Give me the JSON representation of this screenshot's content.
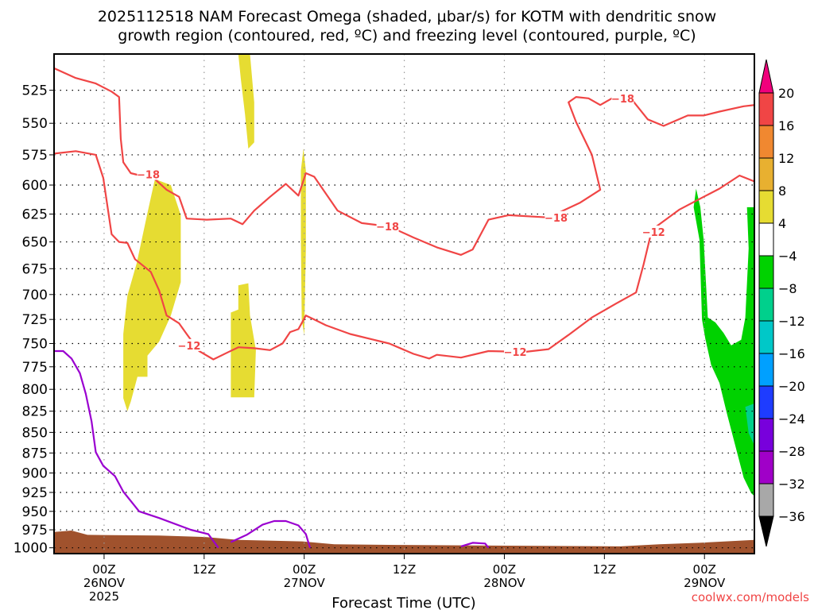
{
  "chart_data": {
    "type": "heatmap",
    "title_line1": "2025112518 NAM Forecast Omega (shaded, μbar/s) for KOTM with dendritic snow",
    "title_line2": "growth region (contoured, red, ºC) and freezing level (contoured, purple, ºC)",
    "xlabel": "Forecast Time (UTC)",
    "credit": "coolwx.com/models",
    "x_units": "forecast hours from 2025-11-25 18Z",
    "xlim": [
      0,
      84
    ],
    "ylim": [
      1008,
      500
    ],
    "y_scale": "log-pressure",
    "y_ticks": [
      525,
      550,
      575,
      600,
      625,
      650,
      675,
      700,
      725,
      750,
      775,
      800,
      825,
      850,
      875,
      900,
      925,
      950,
      975,
      1000
    ],
    "x_ticks": [
      {
        "hour": 6,
        "lines": [
          "00Z",
          "26NOV",
          "2025"
        ]
      },
      {
        "hour": 18,
        "lines": [
          "12Z"
        ]
      },
      {
        "hour": 30,
        "lines": [
          "00Z",
          "27NOV"
        ]
      },
      {
        "hour": 42,
        "lines": [
          "12Z"
        ]
      },
      {
        "hour": 54,
        "lines": [
          "00Z",
          "28NOV"
        ]
      },
      {
        "hour": 66,
        "lines": [
          "12Z"
        ]
      },
      {
        "hour": 78,
        "lines": [
          "00Z",
          "29NOV"
        ]
      }
    ],
    "grid": true,
    "colorbar": {
      "labels": [
        "20",
        "16",
        "12",
        "8",
        "4",
        "-4",
        "-8",
        "-12",
        "-16",
        "-20",
        "-24",
        "-28",
        "-32",
        "-36"
      ],
      "colors": [
        "#f04545",
        "#f08830",
        "#e8b030",
        "#e6dc32",
        "#ffffff",
        "#00d200",
        "#00d08c",
        "#00c8c8",
        "#00a0ff",
        "#1e3cff",
        "#7800dc",
        "#a000c8",
        "#a8a8a8"
      ],
      "over_color": "#f0007c",
      "under_color": "#000000"
    },
    "contours": [
      {
        "name": "dgz-minus18",
        "color": "#f04545",
        "level": "-18",
        "points": [
          [
            0,
            509
          ],
          [
            2.6,
            516
          ],
          [
            5,
            520
          ],
          [
            6.9,
            526
          ],
          [
            7.8,
            530
          ],
          [
            8,
            562
          ],
          [
            8.3,
            581
          ],
          [
            9.2,
            590
          ],
          [
            12.1,
            595
          ],
          [
            13.5,
            604
          ],
          [
            15,
            610
          ],
          [
            15.9,
            629
          ],
          [
            18.3,
            630
          ],
          [
            21.2,
            629
          ],
          [
            22.6,
            634
          ],
          [
            24,
            622
          ],
          [
            25.9,
            610
          ],
          [
            27.8,
            599
          ],
          [
            29.3,
            609
          ],
          [
            30.2,
            590
          ],
          [
            31.2,
            593
          ],
          [
            34,
            622
          ],
          [
            36.9,
            633
          ],
          [
            40.2,
            636
          ],
          [
            43.1,
            646
          ],
          [
            45.9,
            655
          ],
          [
            48.8,
            662
          ],
          [
            50.2,
            657
          ],
          [
            52.1,
            630
          ],
          [
            54.5,
            626
          ],
          [
            59.3,
            628
          ],
          [
            63.1,
            615
          ],
          [
            65.5,
            604
          ],
          [
            64.5,
            575
          ],
          [
            62.6,
            549
          ],
          [
            61.7,
            534
          ],
          [
            62.6,
            530
          ],
          [
            64.1,
            531
          ],
          [
            65.5,
            536
          ],
          [
            66.9,
            531
          ],
          [
            69.3,
            532
          ],
          [
            71.2,
            547
          ],
          [
            73.1,
            552
          ],
          [
            76,
            544
          ],
          [
            77.9,
            544
          ],
          [
            79.8,
            541
          ],
          [
            82.7,
            537
          ],
          [
            84,
            536
          ]
        ]
      },
      {
        "name": "dgz-minus12",
        "color": "#f04545",
        "level": "-12",
        "points": [
          [
            0,
            574
          ],
          [
            2.6,
            572
          ],
          [
            5,
            575
          ],
          [
            5.9,
            594
          ],
          [
            6.9,
            643
          ],
          [
            7.8,
            650
          ],
          [
            8.8,
            651
          ],
          [
            9.7,
            666
          ],
          [
            11.6,
            678
          ],
          [
            12.6,
            696
          ],
          [
            13.5,
            721
          ],
          [
            15,
            729
          ],
          [
            15.9,
            740
          ],
          [
            17.4,
            758
          ],
          [
            19.1,
            767
          ],
          [
            20.7,
            760
          ],
          [
            22.1,
            754
          ],
          [
            24,
            755
          ],
          [
            25.9,
            757
          ],
          [
            27.4,
            750
          ],
          [
            28.3,
            738
          ],
          [
            29.3,
            735
          ],
          [
            30.2,
            721
          ],
          [
            31.2,
            725
          ],
          [
            32.6,
            731
          ],
          [
            35.5,
            740
          ],
          [
            38.3,
            746
          ],
          [
            40.2,
            750
          ],
          [
            43.1,
            761
          ],
          [
            45,
            766
          ],
          [
            45.9,
            762
          ],
          [
            48.8,
            765
          ],
          [
            52.1,
            758
          ],
          [
            56.4,
            759
          ],
          [
            59.3,
            756
          ],
          [
            61.7,
            741
          ],
          [
            64.5,
            723
          ],
          [
            67.4,
            709
          ],
          [
            69.8,
            698
          ],
          [
            70.7,
            671
          ],
          [
            71.7,
            639
          ],
          [
            75,
            621
          ],
          [
            77.9,
            610
          ],
          [
            79.8,
            603
          ],
          [
            82.2,
            592
          ],
          [
            84,
            597
          ]
        ]
      },
      {
        "name": "freezing-level-1",
        "color": "#9a00d0",
        "level": "0",
        "points": [
          [
            0,
            758
          ],
          [
            1.1,
            758
          ],
          [
            2.1,
            766
          ],
          [
            3.1,
            782
          ],
          [
            3.8,
            805
          ],
          [
            4.5,
            837
          ],
          [
            5,
            874
          ],
          [
            5.9,
            891
          ],
          [
            7.3,
            904
          ],
          [
            8.3,
            924
          ],
          [
            10.2,
            950
          ],
          [
            12.6,
            959
          ],
          [
            16.4,
            975
          ],
          [
            18.5,
            981
          ],
          [
            19.7,
            1000
          ]
        ]
      },
      {
        "name": "freezing-level-2",
        "color": "#9a00d0",
        "level": "0",
        "points": [
          [
            21.2,
            992
          ],
          [
            23.1,
            982
          ],
          [
            25,
            968
          ],
          [
            26.4,
            963
          ],
          [
            27.8,
            963
          ],
          [
            29.3,
            969
          ],
          [
            30.2,
            981
          ],
          [
            30.7,
            1000
          ]
        ]
      },
      {
        "name": "freezing-level-3",
        "color": "#9a00d0",
        "level": "0",
        "points": [
          [
            48.8,
            998
          ],
          [
            50.2,
            993
          ],
          [
            51.7,
            994
          ],
          [
            52.1,
            1000
          ]
        ]
      }
    ],
    "contour_labels": [
      {
        "text": "-18",
        "hour": 11.3,
        "hPa": 591
      },
      {
        "text": "-18",
        "hour": 40,
        "hPa": 636
      },
      {
        "text": "-18",
        "hour": 60.2,
        "hPa": 628
      },
      {
        "text": "-18",
        "hour": 68.2,
        "hPa": 531
      },
      {
        "text": "-12",
        "hour": 16.2,
        "hPa": 752
      },
      {
        "text": "-12",
        "hour": 55.3,
        "hPa": 759
      },
      {
        "text": "-12",
        "hour": 71.9,
        "hPa": 641
      }
    ],
    "omega_regions": [
      {
        "name": "omega-4to8-a",
        "color": "#e6dc32",
        "points": [
          [
            8.8,
            825
          ],
          [
            8.3,
            810
          ],
          [
            8.3,
            740
          ],
          [
            8.8,
            701
          ],
          [
            9.9,
            670
          ],
          [
            11.2,
            624
          ],
          [
            12.1,
            595
          ],
          [
            14,
            600
          ],
          [
            15.2,
            626
          ],
          [
            15.2,
            688
          ],
          [
            14,
            721
          ],
          [
            12.6,
            748
          ],
          [
            11.2,
            763
          ],
          [
            11.2,
            786
          ],
          [
            10,
            786
          ],
          [
            9.2,
            814
          ]
        ]
      },
      {
        "name": "omega-4to8-b",
        "color": "#e6dc32",
        "points": [
          [
            22.1,
            499
          ],
          [
            23.5,
            499
          ],
          [
            24,
            534
          ],
          [
            24,
            565
          ],
          [
            23.3,
            570
          ],
          [
            22.9,
            543
          ],
          [
            22.4,
            517
          ]
        ]
      },
      {
        "name": "omega-4to8-c",
        "color": "#e6dc32",
        "points": [
          [
            21.2,
            718
          ],
          [
            22.1,
            715
          ],
          [
            22.1,
            691
          ],
          [
            23.3,
            689
          ],
          [
            23.5,
            721
          ],
          [
            24.2,
            757
          ],
          [
            24,
            809
          ],
          [
            21.2,
            809
          ]
        ]
      },
      {
        "name": "omega-4to8-d",
        "color": "#e6dc32",
        "points": [
          [
            29.6,
            588
          ],
          [
            29.9,
            570
          ],
          [
            30.2,
            588
          ],
          [
            30.2,
            656
          ],
          [
            30,
            741
          ],
          [
            29.7,
            725
          ],
          [
            29.6,
            649
          ]
        ]
      },
      {
        "name": "omega-minus4to8",
        "color": "#00d200",
        "points": [
          [
            76.7,
            619
          ],
          [
            77,
            603
          ],
          [
            77.5,
            619
          ],
          [
            77.9,
            648
          ],
          [
            78.4,
            723
          ],
          [
            79.3,
            728
          ],
          [
            80.3,
            739
          ],
          [
            81.2,
            752
          ],
          [
            82.4,
            746
          ],
          [
            82.9,
            723
          ],
          [
            83.3,
            656
          ],
          [
            83.1,
            619
          ],
          [
            84,
            619
          ],
          [
            84,
            930
          ],
          [
            83.6,
            926
          ],
          [
            82.7,
            906
          ],
          [
            81.7,
            866
          ],
          [
            80.7,
            828
          ],
          [
            79.8,
            793
          ],
          [
            78.8,
            773
          ],
          [
            78.1,
            745
          ],
          [
            77.7,
            725
          ],
          [
            77.4,
            648
          ]
        ]
      },
      {
        "name": "omega-minus8to12",
        "color": "#00d08c",
        "points": [
          [
            82.9,
            820
          ],
          [
            84,
            816
          ],
          [
            84,
            866
          ],
          [
            83.3,
            851
          ]
        ]
      }
    ],
    "ground": {
      "color": "#a0522d",
      "surface_pressure": [
        [
          0,
          978
        ],
        [
          2.1,
          976
        ],
        [
          4,
          982
        ],
        [
          12.6,
          983
        ],
        [
          18.3,
          985
        ],
        [
          22.1,
          989
        ],
        [
          29.7,
          991
        ],
        [
          33.6,
          995
        ],
        [
          41.2,
          996
        ],
        [
          54.5,
          997
        ],
        [
          67.9,
          998
        ],
        [
          72.6,
          995
        ],
        [
          77.4,
          993
        ],
        [
          84,
          989
        ]
      ]
    }
  }
}
